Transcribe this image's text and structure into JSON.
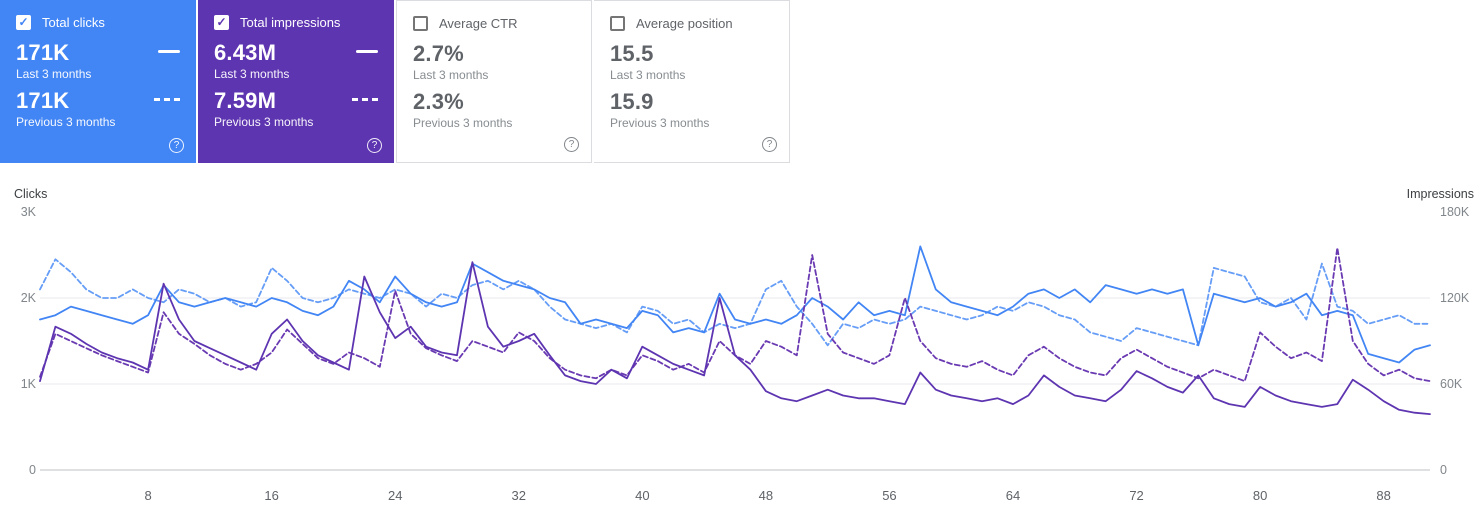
{
  "icons": {
    "checkmark": "✓",
    "help": "?"
  },
  "colors": {
    "clicks": "#4285f4",
    "clicks_prev": "#669df6",
    "impressions": "#5e35b1",
    "impressions_prev": "#6a3ab2",
    "grid": "#e8eaed",
    "axis_line": "#bdc1c6",
    "tick_text": "#80868b"
  },
  "cards": [
    {
      "label": "Total clicks",
      "checked": true,
      "bg": "#4285f4",
      "value_current": "171K",
      "period_current": "Last 3 months",
      "value_previous": "171K",
      "period_previous": "Previous 3 months"
    },
    {
      "label": "Total impressions",
      "checked": true,
      "bg": "#5e35b1",
      "value_current": "6.43M",
      "period_current": "Last 3 months",
      "value_previous": "7.59M",
      "period_previous": "Previous 3 months"
    },
    {
      "label": "Average CTR",
      "checked": false,
      "value_current": "2.7%",
      "period_current": "Last 3 months",
      "value_previous": "2.3%",
      "period_previous": "Previous 3 months"
    },
    {
      "label": "Average position",
      "checked": false,
      "value_current": "15.5",
      "period_current": "Last 3 months",
      "value_previous": "15.9",
      "period_previous": "Previous 3 months"
    }
  ],
  "chart_data": {
    "type": "line",
    "x_range": [
      1,
      91
    ],
    "x_ticks": [
      8,
      16,
      24,
      32,
      40,
      48,
      56,
      64,
      72,
      80,
      88
    ],
    "left_axis": {
      "label": "Clicks",
      "max": 3000,
      "ticks": [
        {
          "value": 0,
          "label": "0"
        },
        {
          "value": 1000,
          "label": "1K"
        },
        {
          "value": 2000,
          "label": "2K"
        },
        {
          "value": 3000,
          "label": "3K"
        }
      ]
    },
    "right_axis": {
      "label": "Impressions",
      "max": 180000,
      "ticks": [
        {
          "value": 0,
          "label": "0"
        },
        {
          "value": 60000,
          "label": "60K"
        },
        {
          "value": 120000,
          "label": "120K"
        },
        {
          "value": 180000,
          "label": "180K"
        }
      ]
    },
    "series": [
      {
        "name": "Total clicks — last 3 months",
        "axis": "left",
        "dash": false,
        "color_key": "clicks",
        "values": [
          1750,
          1800,
          1900,
          1850,
          1800,
          1750,
          1700,
          1800,
          2150,
          1950,
          1900,
          1950,
          2000,
          1950,
          1900,
          2000,
          1950,
          1850,
          1800,
          1900,
          2200,
          2100,
          1950,
          2250,
          2050,
          1950,
          1900,
          1950,
          2400,
          2300,
          2200,
          2150,
          2100,
          2000,
          1950,
          1700,
          1750,
          1700,
          1650,
          1850,
          1800,
          1600,
          1650,
          1600,
          2050,
          1750,
          1700,
          1750,
          1700,
          1800,
          2000,
          1900,
          1750,
          1950,
          1800,
          1850,
          1800,
          2600,
          2100,
          1950,
          1900,
          1850,
          1800,
          1900,
          2050,
          2100,
          2000,
          2100,
          1950,
          2150,
          2100,
          2050,
          2100,
          2050,
          2100,
          1450,
          2050,
          2000,
          1950,
          2000,
          1900,
          1950,
          2050,
          1800,
          1850,
          1800,
          1350,
          1300,
          1250,
          1400,
          1450
        ]
      },
      {
        "name": "Total clicks — previous 3 months",
        "axis": "left",
        "dash": true,
        "color_key": "clicks_prev",
        "values": [
          2100,
          2450,
          2300,
          2100,
          2000,
          2000,
          2100,
          2000,
          1950,
          2100,
          2050,
          1950,
          2000,
          1900,
          1950,
          2350,
          2200,
          2000,
          1950,
          2000,
          2100,
          2050,
          2000,
          2100,
          2050,
          1900,
          2050,
          2000,
          2150,
          2200,
          2100,
          2200,
          2100,
          1900,
          1750,
          1700,
          1650,
          1700,
          1600,
          1900,
          1850,
          1700,
          1750,
          1600,
          1700,
          1650,
          1700,
          2100,
          2200,
          1900,
          1700,
          1450,
          1700,
          1650,
          1750,
          1700,
          1750,
          1900,
          1850,
          1800,
          1750,
          1800,
          1900,
          1850,
          1950,
          1900,
          1800,
          1750,
          1600,
          1550,
          1500,
          1650,
          1600,
          1550,
          1500,
          1450,
          2350,
          2300,
          2250,
          1950,
          1900,
          2000,
          1750,
          2400,
          1900,
          1850,
          1700,
          1750,
          1800,
          1700,
          1700
        ]
      },
      {
        "name": "Total impressions — last 3 months",
        "axis": "right",
        "dash": false,
        "color_key": "impressions",
        "values": [
          62000,
          100000,
          95000,
          88000,
          82000,
          78000,
          75000,
          70000,
          130000,
          105000,
          90000,
          85000,
          80000,
          75000,
          70000,
          95000,
          105000,
          90000,
          80000,
          75000,
          70000,
          135000,
          110000,
          92000,
          100000,
          86000,
          82000,
          80000,
          145000,
          100000,
          86000,
          90000,
          95000,
          80000,
          66000,
          62000,
          60000,
          70000,
          64000,
          86000,
          80000,
          74000,
          70000,
          66000,
          120000,
          80000,
          70000,
          55000,
          50000,
          48000,
          52000,
          56000,
          52000,
          50000,
          50000,
          48000,
          46000,
          68000,
          56000,
          52000,
          50000,
          48000,
          50000,
          46000,
          52000,
          66000,
          58000,
          52000,
          50000,
          48000,
          56000,
          69000,
          64000,
          58000,
          54000,
          66000,
          50000,
          46000,
          44000,
          58000,
          52000,
          48000,
          46000,
          44000,
          46000,
          63000,
          56000,
          48000,
          42000,
          40000,
          39000
        ]
      },
      {
        "name": "Total impressions — previous 3 months",
        "axis": "right",
        "dash": true,
        "color_key": "impressions_prev",
        "values": [
          65000,
          95000,
          90000,
          85000,
          80000,
          76000,
          72000,
          68000,
          110000,
          95000,
          88000,
          80000,
          74000,
          70000,
          74000,
          82000,
          98000,
          88000,
          78000,
          74000,
          82000,
          78000,
          72000,
          125000,
          95000,
          85000,
          80000,
          76000,
          90000,
          86000,
          82000,
          96000,
          90000,
          78000,
          70000,
          66000,
          64000,
          70000,
          66000,
          80000,
          76000,
          70000,
          74000,
          68000,
          90000,
          80000,
          74000,
          90000,
          86000,
          80000,
          150000,
          95000,
          82000,
          78000,
          74000,
          80000,
          120000,
          90000,
          78000,
          74000,
          72000,
          76000,
          70000,
          66000,
          80000,
          86000,
          78000,
          72000,
          68000,
          66000,
          78000,
          84000,
          78000,
          72000,
          68000,
          64000,
          70000,
          66000,
          62000,
          96000,
          86000,
          78000,
          82000,
          76000,
          155000,
          90000,
          74000,
          66000,
          70000,
          64000,
          62000
        ]
      }
    ]
  }
}
